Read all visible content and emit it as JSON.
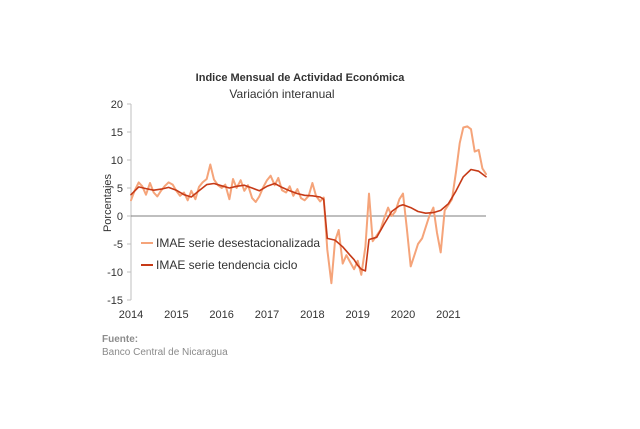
{
  "chart_data": {
    "type": "line",
    "title": "Indice Mensual de  Actividad Económica",
    "subtitle": "Variación interanual",
    "ylabel": "Porcentajes",
    "xlabel": "",
    "ylim": [
      -15,
      20
    ],
    "yticks": [
      "20",
      "15",
      "10",
      "5",
      "0",
      "-5",
      "-10",
      "-15"
    ],
    "xlim": [
      2014.0,
      2021.83
    ],
    "xticks": [
      {
        "x": 2014.0,
        "label": "2014"
      },
      {
        "x": 2015.0,
        "label": "2015"
      },
      {
        "x": 2016.0,
        "label": "2016"
      },
      {
        "x": 2017.0,
        "label": "2017"
      },
      {
        "x": 2018.0,
        "label": "2018"
      },
      {
        "x": 2019.0,
        "label": "2019"
      },
      {
        "x": 2020.0,
        "label": "2020"
      },
      {
        "x": 2021.0,
        "label": "2021"
      }
    ],
    "grid": false,
    "zero_line": true,
    "legend": "inside-left",
    "series": [
      {
        "name": "IMAE serie desestacionalizada",
        "color": "#f5a47a",
        "points": [
          [
            2014.0,
            2.8
          ],
          [
            2014.08,
            4.5
          ],
          [
            2014.17,
            6.0
          ],
          [
            2014.25,
            5.3
          ],
          [
            2014.33,
            3.8
          ],
          [
            2014.42,
            5.9
          ],
          [
            2014.5,
            4.2
          ],
          [
            2014.58,
            3.5
          ],
          [
            2014.67,
            4.6
          ],
          [
            2014.75,
            5.4
          ],
          [
            2014.83,
            6.0
          ],
          [
            2014.92,
            5.6
          ],
          [
            2015.0,
            4.5
          ],
          [
            2015.08,
            3.6
          ],
          [
            2015.17,
            4.2
          ],
          [
            2015.25,
            2.8
          ],
          [
            2015.33,
            4.5
          ],
          [
            2015.42,
            3.0
          ],
          [
            2015.5,
            5.2
          ],
          [
            2015.58,
            6.0
          ],
          [
            2015.67,
            6.6
          ],
          [
            2015.75,
            9.2
          ],
          [
            2015.83,
            6.5
          ],
          [
            2015.92,
            5.5
          ],
          [
            2016.0,
            5.0
          ],
          [
            2016.08,
            5.6
          ],
          [
            2016.17,
            3.0
          ],
          [
            2016.25,
            6.6
          ],
          [
            2016.33,
            5.0
          ],
          [
            2016.42,
            6.4
          ],
          [
            2016.5,
            4.5
          ],
          [
            2016.58,
            5.5
          ],
          [
            2016.67,
            3.2
          ],
          [
            2016.75,
            2.5
          ],
          [
            2016.83,
            3.5
          ],
          [
            2016.92,
            5.2
          ],
          [
            2017.0,
            6.4
          ],
          [
            2017.08,
            7.2
          ],
          [
            2017.17,
            5.5
          ],
          [
            2017.25,
            6.8
          ],
          [
            2017.33,
            4.6
          ],
          [
            2017.42,
            4.2
          ],
          [
            2017.5,
            5.3
          ],
          [
            2017.58,
            3.6
          ],
          [
            2017.67,
            4.8
          ],
          [
            2017.75,
            3.2
          ],
          [
            2017.83,
            2.8
          ],
          [
            2017.92,
            3.6
          ],
          [
            2018.0,
            5.9
          ],
          [
            2018.08,
            3.6
          ],
          [
            2018.17,
            2.6
          ],
          [
            2018.25,
            3.3
          ],
          [
            2018.33,
            -6.0
          ],
          [
            2018.42,
            -12.0
          ],
          [
            2018.5,
            -4.5
          ],
          [
            2018.58,
            -2.5
          ],
          [
            2018.67,
            -8.5
          ],
          [
            2018.75,
            -7.0
          ],
          [
            2018.83,
            -8.2
          ],
          [
            2018.92,
            -9.5
          ],
          [
            2019.0,
            -8.0
          ],
          [
            2019.08,
            -10.5
          ],
          [
            2019.17,
            -5.5
          ],
          [
            2019.25,
            4.0
          ],
          [
            2019.33,
            -4.5
          ],
          [
            2019.42,
            -3.5
          ],
          [
            2019.5,
            -2.5
          ],
          [
            2019.58,
            -0.5
          ],
          [
            2019.67,
            1.5
          ],
          [
            2019.75,
            0.0
          ],
          [
            2019.83,
            0.8
          ],
          [
            2019.92,
            3.0
          ],
          [
            2020.0,
            4.0
          ],
          [
            2020.08,
            -2.0
          ],
          [
            2020.17,
            -9.0
          ],
          [
            2020.25,
            -7.0
          ],
          [
            2020.33,
            -5.0
          ],
          [
            2020.42,
            -4.0
          ],
          [
            2020.5,
            -2.0
          ],
          [
            2020.58,
            0.0
          ],
          [
            2020.67,
            1.5
          ],
          [
            2020.75,
            -3.0
          ],
          [
            2020.83,
            -6.5
          ],
          [
            2020.92,
            1.0
          ],
          [
            2021.0,
            2.0
          ],
          [
            2021.08,
            3.0
          ],
          [
            2021.17,
            8.0
          ],
          [
            2021.25,
            13.0
          ],
          [
            2021.33,
            15.8
          ],
          [
            2021.42,
            16.0
          ],
          [
            2021.5,
            15.5
          ],
          [
            2021.58,
            11.5
          ],
          [
            2021.67,
            11.8
          ],
          [
            2021.75,
            8.5
          ],
          [
            2021.83,
            7.5
          ]
        ]
      },
      {
        "name": "IMAE serie  tendencia ciclo",
        "color": "#c63a17",
        "points": [
          [
            2014.0,
            3.8
          ],
          [
            2014.17,
            5.2
          ],
          [
            2014.33,
            4.9
          ],
          [
            2014.5,
            4.6
          ],
          [
            2014.67,
            4.8
          ],
          [
            2014.83,
            5.1
          ],
          [
            2015.0,
            4.6
          ],
          [
            2015.17,
            3.8
          ],
          [
            2015.33,
            3.4
          ],
          [
            2015.5,
            4.5
          ],
          [
            2015.67,
            5.6
          ],
          [
            2015.83,
            5.8
          ],
          [
            2016.0,
            5.4
          ],
          [
            2016.17,
            5.0
          ],
          [
            2016.33,
            5.3
          ],
          [
            2016.5,
            5.5
          ],
          [
            2016.67,
            5.0
          ],
          [
            2016.83,
            4.5
          ],
          [
            2017.0,
            5.3
          ],
          [
            2017.17,
            5.8
          ],
          [
            2017.33,
            5.1
          ],
          [
            2017.5,
            4.5
          ],
          [
            2017.67,
            4.0
          ],
          [
            2017.83,
            3.7
          ],
          [
            2018.0,
            3.6
          ],
          [
            2018.17,
            3.4
          ],
          [
            2018.25,
            3.0
          ],
          [
            2018.33,
            -4.0
          ],
          [
            2018.5,
            -4.3
          ],
          [
            2018.67,
            -5.5
          ],
          [
            2018.83,
            -7.0
          ],
          [
            2018.92,
            -7.8
          ],
          [
            2019.0,
            -8.8
          ],
          [
            2019.08,
            -9.5
          ],
          [
            2019.17,
            -9.8
          ],
          [
            2019.25,
            -4.2
          ],
          [
            2019.42,
            -3.8
          ],
          [
            2019.58,
            -1.5
          ],
          [
            2019.75,
            0.8
          ],
          [
            2019.92,
            1.8
          ],
          [
            2020.0,
            2.0
          ],
          [
            2020.17,
            1.5
          ],
          [
            2020.33,
            0.8
          ],
          [
            2020.5,
            0.5
          ],
          [
            2020.67,
            0.6
          ],
          [
            2020.83,
            1.0
          ],
          [
            2021.0,
            2.2
          ],
          [
            2021.17,
            4.5
          ],
          [
            2021.33,
            7.0
          ],
          [
            2021.5,
            8.3
          ],
          [
            2021.67,
            8.0
          ],
          [
            2021.83,
            7.0
          ]
        ]
      }
    ]
  },
  "footer": {
    "source_label": "Fuente:",
    "source_name": "Banco Central de Nicaragua"
  }
}
